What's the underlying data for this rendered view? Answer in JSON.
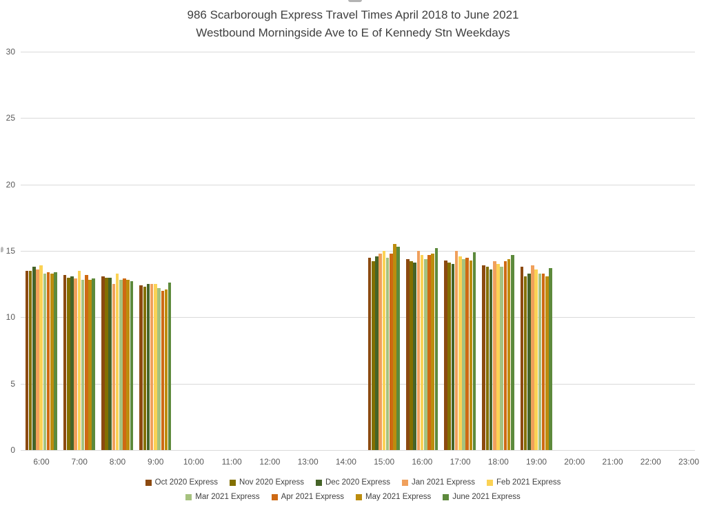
{
  "chart_data": {
    "type": "bar",
    "title": "986 Scarborough Express Travel Times April 2018 to June 2021",
    "subtitle": "Westbound Morningside Ave to E of Kennedy Stn Weekdays",
    "xlabel": "",
    "ylabel": "",
    "ylim": [
      0,
      30
    ],
    "y_ticks": [
      0,
      5,
      10,
      15,
      20,
      25,
      30
    ],
    "grid": true,
    "legend_position": "bottom",
    "legend_rows": [
      5,
      4
    ],
    "categories": [
      "6:00",
      "7:00",
      "8:00",
      "9:00",
      "10:00",
      "11:00",
      "12:00",
      "13:00",
      "14:00",
      "15:00",
      "16:00",
      "17:00",
      "18:00",
      "19:00",
      "20:00",
      "21:00",
      "22:00",
      "23:00"
    ],
    "series": [
      {
        "name": "Oct 2020 Express",
        "color": "#8C4A10",
        "values": [
          13.5,
          13.2,
          13.1,
          12.4,
          null,
          null,
          null,
          null,
          null,
          14.5,
          14.4,
          14.3,
          13.9,
          13.8,
          null,
          null,
          null,
          null
        ]
      },
      {
        "name": "Nov 2020 Express",
        "color": "#837000",
        "values": [
          13.5,
          13.0,
          13.0,
          12.3,
          null,
          null,
          null,
          null,
          null,
          14.2,
          14.2,
          14.1,
          13.8,
          13.1,
          null,
          null,
          null,
          null
        ]
      },
      {
        "name": "Dec 2020 Express",
        "color": "#466428",
        "values": [
          13.8,
          13.1,
          13.0,
          12.5,
          null,
          null,
          null,
          null,
          null,
          14.6,
          14.1,
          14.0,
          13.6,
          13.3,
          null,
          null,
          null,
          null
        ]
      },
      {
        "name": "Jan 2021 Express",
        "color": "#F0A05C",
        "values": [
          13.6,
          12.9,
          12.5,
          12.5,
          null,
          null,
          null,
          null,
          null,
          14.8,
          15.0,
          15.0,
          14.2,
          13.9,
          null,
          null,
          null,
          null
        ]
      },
      {
        "name": "Feb 2021 Express",
        "color": "#FBD255",
        "values": [
          13.9,
          13.5,
          13.3,
          12.5,
          null,
          null,
          null,
          null,
          null,
          15.0,
          14.7,
          14.6,
          14.0,
          13.6,
          null,
          null,
          null,
          null
        ]
      },
      {
        "name": "Mar 2021 Express",
        "color": "#A6C27F",
        "values": [
          13.3,
          12.8,
          12.8,
          12.2,
          null,
          null,
          null,
          null,
          null,
          14.5,
          14.4,
          14.4,
          13.8,
          13.3,
          null,
          null,
          null,
          null
        ]
      },
      {
        "name": "Apr 2021 Express",
        "color": "#CE6913",
        "values": [
          13.4,
          13.2,
          12.9,
          12.0,
          null,
          null,
          null,
          null,
          null,
          14.8,
          14.7,
          14.5,
          14.2,
          13.3,
          null,
          null,
          null,
          null
        ]
      },
      {
        "name": "May 2021 Express",
        "color": "#BC8D0E",
        "values": [
          13.3,
          12.8,
          12.8,
          12.1,
          null,
          null,
          null,
          null,
          null,
          15.5,
          14.8,
          14.3,
          14.4,
          13.1,
          null,
          null,
          null,
          null
        ]
      },
      {
        "name": "June 2021 Express",
        "color": "#5D8A3C",
        "values": [
          13.4,
          12.9,
          12.7,
          12.6,
          null,
          null,
          null,
          null,
          null,
          15.3,
          15.2,
          14.9,
          14.7,
          13.7,
          null,
          null,
          null,
          null
        ]
      }
    ]
  }
}
